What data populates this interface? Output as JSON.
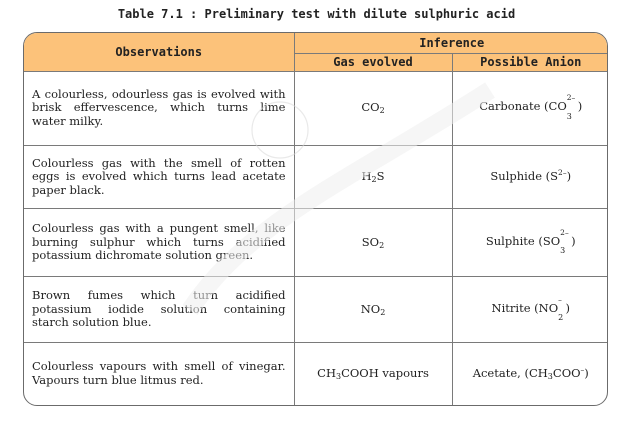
{
  "caption": "Table 7.1 : Preliminary test with dilute sulphuric acid",
  "header": {
    "observations": "Observations",
    "inference": "Inference",
    "gas_evolved": "Gas evolved",
    "possible_anion": "Possible Anion"
  },
  "rows": [
    {
      "observation": "A colourless, odourless gas is evolved with brisk effervescence, which turns lime water milky.",
      "gas": {
        "pre": "CO",
        "sub": "2",
        "post": ""
      },
      "anion": {
        "name": "Carbonate",
        "formula": "CO",
        "sub": "3",
        "sup": "2–"
      }
    },
    {
      "observation": "Colourless gas with the smell of rotten eggs is evolved which turns lead acetate paper black.",
      "gas": {
        "pre": "H",
        "sub": "2",
        "post": "S"
      },
      "anion": {
        "name": "Sulphide",
        "formula": "S",
        "sub": "",
        "sup": "2–"
      }
    },
    {
      "observation": "Colourless gas with a pungent smell, like burning sulphur which turns acidified potassium dichromate solution green.",
      "gas": {
        "pre": "SO",
        "sub": "2",
        "post": ""
      },
      "anion": {
        "name": "Sulphite",
        "formula": "SO",
        "sub": "3",
        "sup": "2–"
      }
    },
    {
      "observation": "Brown fumes which turn acidified potassium iodide solution containing starch solution blue.",
      "gas": {
        "pre": "NO",
        "sub": "2",
        "post": ""
      },
      "anion": {
        "name": "Nitrite",
        "formula": "NO",
        "sub": "2",
        "sup": "–"
      }
    },
    {
      "observation": "Colourless vapours with smell of vinegar. Vapours turn blue litmus red.",
      "gas": {
        "pre": "CH",
        "sub": "3",
        "post": "COOH vapours"
      },
      "anion": {
        "name": "Acetate,",
        "formula": "CH",
        "sub": "3",
        "post": "COO",
        "sup": "–"
      }
    }
  ],
  "colors": {
    "header_bg": "#fcc27a",
    "border": "#7a7a7a"
  }
}
